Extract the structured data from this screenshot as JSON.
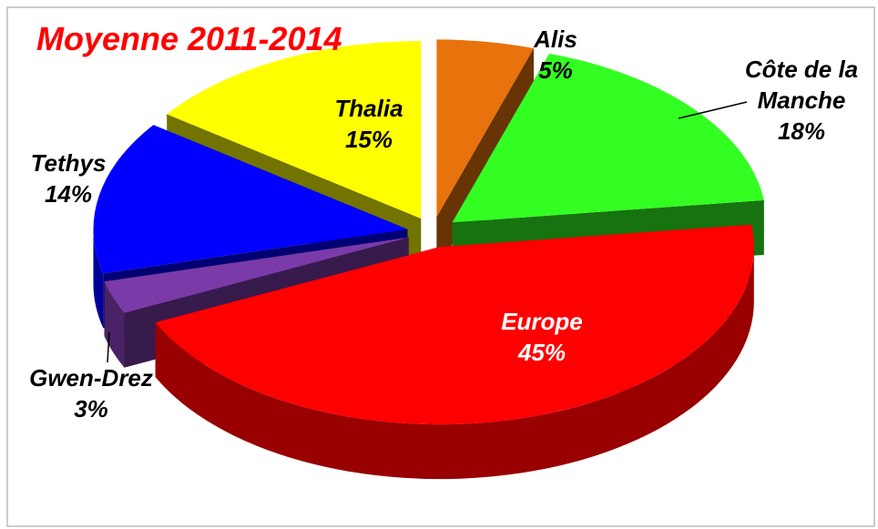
{
  "chart_data": {
    "type": "pie3d",
    "title": "Moyenne 2011-2014",
    "categories": [
      "Alis",
      "Côte de la Manche",
      "Europe",
      "Gwen-Drez",
      "Tethys",
      "Thalia"
    ],
    "values": [
      5,
      18,
      45,
      3,
      14,
      15
    ],
    "value_labels": [
      "5%",
      "18%",
      "45%",
      "3%",
      "14%",
      "15%"
    ],
    "colors": [
      "#e8720c",
      "#33ff22",
      "#ff0000",
      "#7a3aa8",
      "#0000ff",
      "#ffff00"
    ]
  }
}
